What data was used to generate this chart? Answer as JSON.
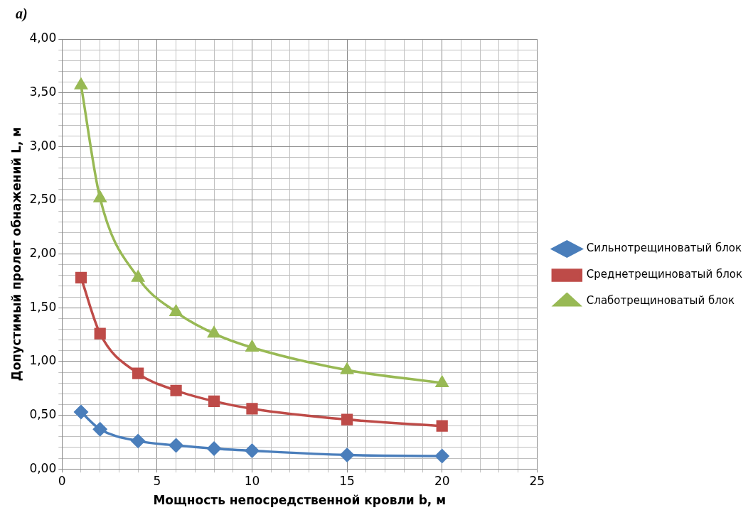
{
  "chart_data": {
    "type": "line",
    "title": "a)",
    "xlabel": "Мощность непосредственной кровли b, м",
    "ylabel": "Допустимый пролет обнажений L, м",
    "x": [
      1,
      2,
      4,
      6,
      8,
      10,
      15,
      20
    ],
    "series": [
      {
        "name": "Сильнотрещиноватый блок",
        "color": "#4a7ebb",
        "marker": "diamond",
        "values": [
          0.53,
          0.37,
          0.26,
          0.22,
          0.19,
          0.17,
          0.13,
          0.12
        ]
      },
      {
        "name": "Среднетрещиноватый блок",
        "color": "#be4b48",
        "marker": "square",
        "values": [
          1.78,
          1.26,
          0.89,
          0.73,
          0.63,
          0.56,
          0.46,
          0.4
        ]
      },
      {
        "name": "Слаботрещиноватый блок",
        "color": "#98b954",
        "marker": "triangle",
        "values": [
          3.57,
          2.52,
          1.78,
          1.46,
          1.26,
          1.13,
          0.92,
          0.8
        ]
      }
    ],
    "xlim": [
      0,
      25
    ],
    "xticks": [
      0,
      {
        "value": 1,
        "label": null
      },
      {
        "value": 2,
        "label": null
      },
      {
        "value": 3,
        "label": null
      },
      {
        "value": 4,
        "label": null
      },
      5,
      {
        "value": 6,
        "label": null
      },
      {
        "value": 7,
        "label": null
      },
      {
        "value": 8,
        "label": null
      },
      {
        "value": 9,
        "label": null
      },
      10,
      {
        "value": 11,
        "label": null
      },
      {
        "value": 12,
        "label": null
      },
      {
        "value": 13,
        "label": null
      },
      {
        "value": 14,
        "label": null
      },
      15,
      {
        "value": 16,
        "label": null
      },
      {
        "value": 17,
        "label": null
      },
      {
        "value": 18,
        "label": null
      },
      {
        "value": 19,
        "label": null
      },
      20,
      {
        "value": 21,
        "label": null
      },
      {
        "value": 22,
        "label": null
      },
      {
        "value": 23,
        "label": null
      },
      {
        "value": 24,
        "label": null
      },
      25
    ],
    "ylim": [
      0,
      4
    ],
    "yticks": [
      {
        "value": 0,
        "label": "0,00"
      },
      {
        "value": 0.1,
        "label": null
      },
      {
        "value": 0.2,
        "label": null
      },
      {
        "value": 0.3,
        "label": null
      },
      {
        "value": 0.4,
        "label": null
      },
      {
        "value": 0.5,
        "label": "0,50"
      },
      {
        "value": 0.6,
        "label": null
      },
      {
        "value": 0.7,
        "label": null
      },
      {
        "value": 0.8,
        "label": null
      },
      {
        "value": 0.9,
        "label": null
      },
      {
        "value": 1,
        "label": "1,00"
      },
      {
        "value": 1.1,
        "label": null
      },
      {
        "value": 1.2,
        "label": null
      },
      {
        "value": 1.3,
        "label": null
      },
      {
        "value": 1.4,
        "label": null
      },
      {
        "value": 1.5,
        "label": "1,50"
      },
      {
        "value": 1.6,
        "label": null
      },
      {
        "value": 1.7,
        "label": null
      },
      {
        "value": 1.8,
        "label": null
      },
      {
        "value": 1.9,
        "label": null
      },
      {
        "value": 2,
        "label": "2,00"
      },
      {
        "value": 2.1,
        "label": null
      },
      {
        "value": 2.2,
        "label": null
      },
      {
        "value": 2.3,
        "label": null
      },
      {
        "value": 2.4,
        "label": null
      },
      {
        "value": 2.5,
        "label": "2,50"
      },
      {
        "value": 2.6,
        "label": null
      },
      {
        "value": 2.7,
        "label": null
      },
      {
        "value": 2.8,
        "label": null
      },
      {
        "value": 2.9,
        "label": null
      },
      {
        "value": 3,
        "label": "3,00"
      },
      {
        "value": 3.1,
        "label": null
      },
      {
        "value": 3.2,
        "label": null
      },
      {
        "value": 3.3,
        "label": null
      },
      {
        "value": 3.4,
        "label": null
      },
      {
        "value": 3.5,
        "label": "3,50"
      },
      {
        "value": 3.6,
        "label": null
      },
      {
        "value": 3.7,
        "label": null
      },
      {
        "value": 3.8,
        "label": null
      },
      {
        "value": 3.9,
        "label": null
      },
      {
        "value": 4,
        "label": "4,00"
      }
    ],
    "grid": true,
    "legend": "right",
    "line_style": "solid"
  }
}
